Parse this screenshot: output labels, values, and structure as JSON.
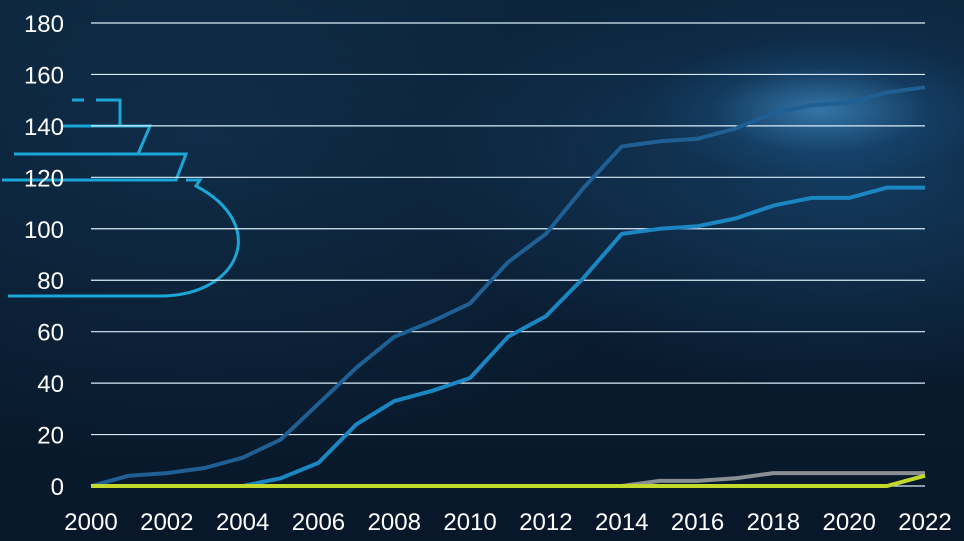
{
  "chart_data": {
    "type": "line",
    "title": "",
    "xlabel": "",
    "ylabel": "",
    "ylim": [
      0,
      180
    ],
    "yticks": [
      0,
      20,
      40,
      60,
      80,
      100,
      120,
      140,
      160,
      180
    ],
    "x": [
      2000,
      2001,
      2002,
      2003,
      2004,
      2005,
      2006,
      2007,
      2008,
      2009,
      2010,
      2011,
      2012,
      2013,
      2014,
      2015,
      2016,
      2017,
      2018,
      2019,
      2020,
      2021,
      2022
    ],
    "xtick_labels": [
      "2000",
      "2002",
      "2004",
      "2006",
      "2008",
      "2010",
      "2012",
      "2014",
      "2016",
      "2018",
      "2020",
      "2022"
    ],
    "grid": "horizontal",
    "legend": "none",
    "series": [
      {
        "color": "#1f5f93",
        "values": [
          0,
          4,
          5,
          7,
          11,
          18,
          32,
          46,
          58,
          64,
          71,
          87,
          98,
          116,
          132,
          134,
          135,
          139,
          145,
          148,
          149,
          153,
          155
        ]
      },
      {
        "color": "#1b86c2",
        "values": [
          0,
          0,
          0,
          0,
          0,
          3,
          9,
          24,
          33,
          37,
          42,
          58,
          66,
          81,
          98,
          100,
          101,
          104,
          109,
          112,
          112,
          116,
          116
        ]
      },
      {
        "color": "#8a8f93",
        "values": [
          0,
          0,
          0,
          0,
          0,
          0,
          0,
          0,
          0,
          0,
          0,
          0,
          0,
          0,
          0,
          2,
          2,
          3,
          5,
          5,
          5,
          5,
          5
        ]
      },
      {
        "color": "#c2d92c",
        "values": [
          0,
          0,
          0,
          0,
          0,
          0,
          0,
          0,
          0,
          0,
          0,
          0,
          0,
          0,
          0,
          0,
          0,
          0,
          0,
          0,
          0,
          0,
          4
        ]
      }
    ]
  }
}
